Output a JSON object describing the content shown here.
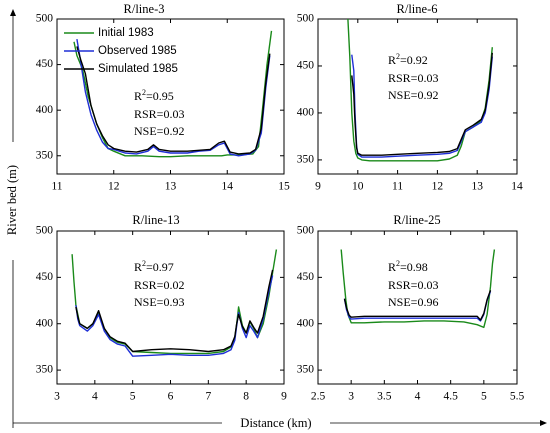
{
  "figure": {
    "ylabel": "River bed (m)",
    "xlabel": "Distance (km)"
  },
  "legend": [
    {
      "label": "Initial 1983",
      "color": "#1a8a1a"
    },
    {
      "label": "Observed 1985",
      "color": "#1f2fd6"
    },
    {
      "label": "Simulated 1985",
      "color": "#000000"
    }
  ],
  "chart_data": [
    {
      "type": "line",
      "title": "R/line-3",
      "xlim": [
        11,
        15
      ],
      "ylim": [
        330,
        500
      ],
      "xticks": [
        11,
        12,
        13,
        14,
        15
      ],
      "xtick_labels": [
        "11",
        "12",
        "13",
        "14",
        "15"
      ],
      "yticks": [
        350,
        400,
        450,
        500
      ],
      "ytick_labels": [
        "350",
        "400",
        "450",
        "500"
      ],
      "stats": {
        "r2": "R2=0.95",
        "rsr": "RSR=0.03",
        "nse": "NSE=0.92"
      },
      "series": [
        {
          "name": "Initial 1983",
          "color": "#1a8a1a",
          "x": [
            11.3,
            11.35,
            11.45,
            11.55,
            11.7,
            11.8,
            11.9,
            12.0,
            12.2,
            12.5,
            12.8,
            13.0,
            13.3,
            13.6,
            13.9,
            14.0,
            14.2,
            14.45,
            14.55,
            14.62,
            14.7,
            14.78
          ],
          "y": [
            475,
            460,
            445,
            415,
            385,
            370,
            358,
            355,
            350,
            350,
            349,
            349,
            350,
            350,
            350,
            351,
            351,
            352,
            360,
            400,
            450,
            487
          ]
        },
        {
          "name": "Observed 1985",
          "color": "#1f2fd6",
          "x": [
            11.35,
            11.4,
            11.45,
            11.5,
            11.6,
            11.7,
            11.8,
            11.9,
            12.0,
            12.2,
            12.4,
            12.6,
            12.7,
            12.8,
            13.0,
            13.3,
            13.5,
            13.7,
            13.85,
            13.95,
            14.05,
            14.2,
            14.4,
            14.5,
            14.6,
            14.68,
            14.75
          ],
          "y": [
            478,
            460,
            440,
            420,
            395,
            378,
            365,
            358,
            357,
            353,
            352,
            355,
            360,
            355,
            353,
            353,
            355,
            356,
            362,
            364,
            352,
            350,
            352,
            356,
            375,
            425,
            460
          ]
        },
        {
          "name": "Simulated 1985",
          "color": "#000000",
          "x": [
            11.35,
            11.42,
            11.5,
            11.6,
            11.7,
            11.8,
            11.9,
            12.0,
            12.2,
            12.4,
            12.6,
            12.7,
            12.8,
            13.0,
            13.3,
            13.5,
            13.7,
            13.85,
            13.95,
            14.05,
            14.2,
            14.4,
            14.5,
            14.6,
            14.68,
            14.75
          ],
          "y": [
            470,
            455,
            440,
            405,
            385,
            372,
            362,
            358,
            355,
            354,
            357,
            362,
            357,
            355,
            355,
            356,
            357,
            364,
            366,
            354,
            352,
            353,
            357,
            380,
            430,
            462
          ]
        }
      ]
    },
    {
      "type": "line",
      "title": "R/line-6",
      "xlim": [
        9,
        14
      ],
      "ylim": [
        335,
        500
      ],
      "xticks": [
        9,
        10,
        11,
        12,
        13,
        14
      ],
      "xtick_labels": [
        "9",
        "10",
        "11",
        "12",
        "13",
        "14"
      ],
      "yticks": [
        350,
        400,
        450,
        500
      ],
      "ytick_labels": [
        "350",
        "400",
        "450",
        "500"
      ],
      "stats": {
        "r2": "R2=0.92",
        "rsr": "RSR=0.03",
        "nse": "NSE=0.92"
      },
      "series": [
        {
          "name": "Initial 1983",
          "color": "#1a8a1a",
          "x": [
            9.75,
            9.8,
            9.85,
            9.9,
            9.95,
            10.0,
            10.1,
            10.3,
            10.6,
            11.0,
            11.5,
            12.0,
            12.3,
            12.5,
            12.6,
            12.7,
            12.9,
            13.1,
            13.2,
            13.3,
            13.38
          ],
          "y": [
            500,
            460,
            400,
            370,
            357,
            352,
            350,
            349,
            349,
            349,
            349,
            349,
            351,
            355,
            365,
            380,
            385,
            392,
            405,
            435,
            470
          ]
        },
        {
          "name": "Observed 1985",
          "color": "#1f2fd6",
          "x": [
            9.85,
            9.9,
            9.93,
            9.97,
            10.0,
            10.1,
            10.3,
            10.6,
            11.0,
            11.5,
            12.0,
            12.3,
            12.5,
            12.6,
            12.7,
            12.9,
            13.1,
            13.2,
            13.3,
            13.38
          ],
          "y": [
            462,
            445,
            400,
            365,
            356,
            353,
            353,
            353,
            354,
            355,
            356,
            357,
            360,
            370,
            380,
            385,
            390,
            400,
            425,
            460
          ]
        },
        {
          "name": "Simulated 1985",
          "color": "#000000",
          "x": [
            9.85,
            9.9,
            9.93,
            9.97,
            10.0,
            10.1,
            10.3,
            10.6,
            11.0,
            11.5,
            12.0,
            12.3,
            12.5,
            12.6,
            12.7,
            12.9,
            13.1,
            13.2,
            13.3,
            13.38
          ],
          "y": [
            440,
            420,
            390,
            363,
            357,
            355,
            355,
            355,
            356,
            357,
            358,
            359,
            362,
            372,
            382,
            387,
            393,
            403,
            430,
            464
          ]
        }
      ]
    },
    {
      "type": "line",
      "title": "R/line-13",
      "xlim": [
        3,
        9
      ],
      "ylim": [
        335,
        500
      ],
      "xticks": [
        3,
        4,
        5,
        6,
        7,
        8,
        9
      ],
      "xtick_labels": [
        "3",
        "4",
        "5",
        "6",
        "7",
        "8",
        "9"
      ],
      "yticks": [
        350,
        400,
        450,
        500
      ],
      "ytick_labels": [
        "350",
        "400",
        "450",
        "500"
      ],
      "stats": {
        "r2": "R2=0.97",
        "rsr": "RSR=0.02",
        "nse": "NSE=0.93"
      },
      "series": [
        {
          "name": "Initial 1983",
          "color": "#1a8a1a",
          "x": [
            3.4,
            3.45,
            3.5,
            3.6,
            3.8,
            3.95,
            4.1,
            4.25,
            4.4,
            4.6,
            4.8,
            5.0,
            5.5,
            6.0,
            6.5,
            7.0,
            7.4,
            7.6,
            7.7,
            7.75,
            7.8,
            7.9,
            8.0,
            8.1,
            8.2,
            8.3,
            8.45,
            8.6,
            8.7,
            8.8
          ],
          "y": [
            475,
            445,
            420,
            400,
            395,
            400,
            412,
            395,
            385,
            380,
            378,
            370,
            369,
            368,
            368,
            368,
            370,
            375,
            385,
            400,
            418,
            398,
            390,
            402,
            395,
            385,
            400,
            430,
            455,
            480
          ]
        },
        {
          "name": "Observed 1985",
          "color": "#1f2fd6",
          "x": [
            3.5,
            3.55,
            3.6,
            3.8,
            3.95,
            4.1,
            4.25,
            4.4,
            4.6,
            4.8,
            5.0,
            5.5,
            6.0,
            6.5,
            7.0,
            7.4,
            7.6,
            7.7,
            7.75,
            7.8,
            7.9,
            8.0,
            8.1,
            8.2,
            8.3,
            8.45,
            8.6,
            8.7
          ],
          "y": [
            420,
            405,
            398,
            392,
            398,
            410,
            392,
            383,
            378,
            376,
            365,
            366,
            367,
            366,
            366,
            368,
            372,
            382,
            398,
            412,
            395,
            385,
            398,
            392,
            385,
            405,
            435,
            452
          ]
        },
        {
          "name": "Simulated 1985",
          "color": "#000000",
          "x": [
            3.5,
            3.55,
            3.6,
            3.8,
            3.95,
            4.1,
            4.25,
            4.4,
            4.6,
            4.8,
            5.0,
            5.5,
            6.0,
            6.5,
            7.0,
            7.4,
            7.6,
            7.7,
            7.75,
            7.8,
            7.9,
            8.0,
            8.1,
            8.2,
            8.3,
            8.45,
            8.6,
            8.7
          ],
          "y": [
            418,
            408,
            400,
            395,
            400,
            414,
            395,
            386,
            381,
            379,
            370,
            372,
            373,
            372,
            370,
            372,
            376,
            386,
            400,
            410,
            397,
            390,
            403,
            396,
            390,
            408,
            440,
            458
          ]
        }
      ]
    },
    {
      "type": "line",
      "title": "R/line-25",
      "xlim": [
        2.5,
        5.5
      ],
      "ylim": [
        335,
        500
      ],
      "xticks": [
        2.5,
        3,
        3.5,
        4,
        4.5,
        5,
        5.5
      ],
      "xtick_labels": [
        "2.5",
        "3",
        "3.5",
        "4",
        "4.5",
        "5",
        "5.5"
      ],
      "yticks": [
        350,
        400,
        450,
        500
      ],
      "ytick_labels": [
        "350",
        "400",
        "450",
        "500"
      ],
      "stats": {
        "r2": "R2=0.98",
        "rsr": "RSR=0.03",
        "nse": "NSE=0.96"
      },
      "series": [
        {
          "name": "Initial 1983",
          "color": "#1a8a1a",
          "x": [
            2.85,
            2.88,
            2.92,
            2.95,
            3.0,
            3.2,
            3.5,
            3.8,
            4.1,
            4.4,
            4.7,
            4.9,
            5.0,
            5.05,
            5.1,
            5.13,
            5.16
          ],
          "y": [
            480,
            455,
            425,
            410,
            401,
            401,
            402,
            402,
            403,
            403,
            402,
            399,
            396,
            410,
            440,
            465,
            480
          ]
        },
        {
          "name": "Observed 1985",
          "color": "#1f2fd6",
          "x": [
            2.9,
            2.93,
            2.97,
            3.0,
            3.2,
            3.5,
            3.8,
            4.1,
            4.4,
            4.7,
            4.9,
            4.95,
            5.0,
            5.05,
            5.1
          ],
          "y": [
            427,
            415,
            407,
            405,
            406,
            406,
            406,
            406,
            406,
            406,
            406,
            403,
            410,
            425,
            435
          ]
        },
        {
          "name": "Simulated 1985",
          "color": "#000000",
          "x": [
            2.9,
            2.93,
            2.97,
            3.0,
            3.2,
            3.5,
            3.8,
            4.1,
            4.4,
            4.7,
            4.9,
            4.95,
            5.0,
            5.05,
            5.1
          ],
          "y": [
            427,
            417,
            409,
            407,
            408,
            408,
            408,
            408,
            408,
            408,
            408,
            404,
            411,
            426,
            436
          ]
        }
      ]
    }
  ]
}
